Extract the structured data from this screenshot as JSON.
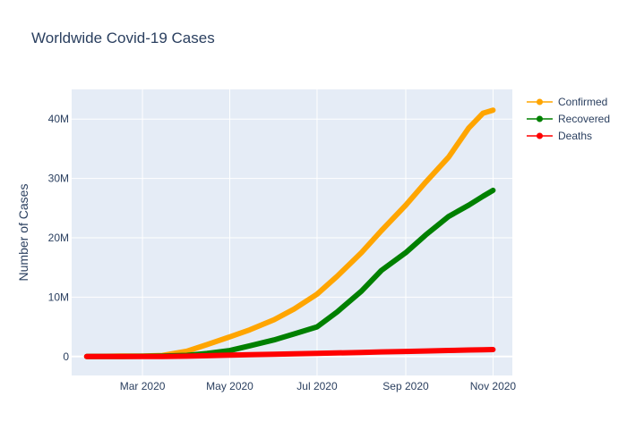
{
  "chart_data": {
    "type": "line",
    "title": "Worldwide Covid-19 Cases",
    "xlabel": "",
    "ylabel": "Number of Cases",
    "x_start": "2020-01-22",
    "x_end": "2020-11-01",
    "x": [
      "2020-01-22",
      "2020-02-15",
      "2020-03-01",
      "2020-03-15",
      "2020-04-01",
      "2020-04-15",
      "2020-05-01",
      "2020-05-15",
      "2020-06-01",
      "2020-06-15",
      "2020-07-01",
      "2020-07-15",
      "2020-08-01",
      "2020-08-15",
      "2020-09-01",
      "2020-09-15",
      "2020-10-01",
      "2020-10-15",
      "2020-10-25",
      "2020-11-01"
    ],
    "x_ticks": [
      {
        "date": "2020-03-01",
        "label": "Mar 2020"
      },
      {
        "date": "2020-05-01",
        "label": "May 2020"
      },
      {
        "date": "2020-07-01",
        "label": "Jul 2020"
      },
      {
        "date": "2020-09-01",
        "label": "Sep 2020"
      },
      {
        "date": "2020-11-01",
        "label": "Nov 2020"
      }
    ],
    "y_ticks": [
      {
        "value": 0,
        "label": "0"
      },
      {
        "value": 10000000,
        "label": "10M"
      },
      {
        "value": 20000000,
        "label": "20M"
      },
      {
        "value": 30000000,
        "label": "30M"
      },
      {
        "value": 40000000,
        "label": "40M"
      }
    ],
    "ylim": [
      -3200000,
      45000000
    ],
    "grid": true,
    "legend_position": "top-right",
    "series": [
      {
        "name": "Confirmed",
        "color": "#FFA500",
        "values": [
          600,
          70000,
          88000,
          170000,
          900000,
          2000000,
          3300000,
          4500000,
          6200000,
          8000000,
          10500000,
          13500000,
          17500000,
          21200000,
          25500000,
          29400000,
          33600000,
          38500000,
          41000000,
          41500000
        ]
      },
      {
        "name": "Recovered",
        "color": "#008000",
        "values": [
          30,
          12000,
          43000,
          80000,
          190000,
          500000,
          1000000,
          1800000,
          2800000,
          3800000,
          5000000,
          7500000,
          11000000,
          14500000,
          17500000,
          20500000,
          23600000,
          25500000,
          27000000,
          28000000
        ]
      },
      {
        "name": "Deaths",
        "color": "#FF0000",
        "values": [
          17,
          1500,
          3000,
          6500,
          50000,
          130000,
          240000,
          310000,
          380000,
          440000,
          520000,
          590000,
          690000,
          770000,
          850000,
          930000,
          1010000,
          1090000,
          1140000,
          1170000
        ]
      }
    ]
  }
}
